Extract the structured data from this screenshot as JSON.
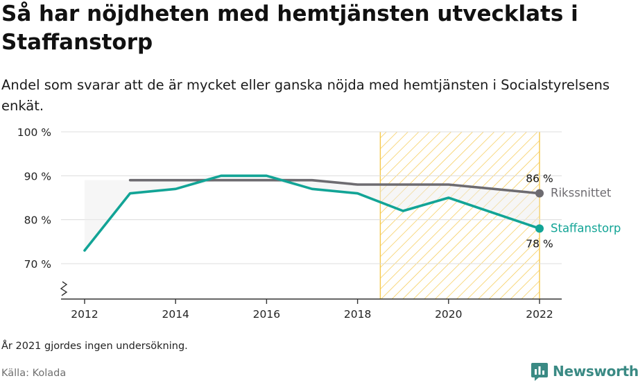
{
  "title": "Så har nöjdheten med hemtjänsten utvecklats i Staffanstorp",
  "subtitle": "Andel som svarar att de är mycket eller ganska nöjda med hemtjänsten i Socialstyrelsens enkät.",
  "note": "År 2021 gjordes ingen undersökning.",
  "source": "Källa: Kolada",
  "brand": "Newsworthy",
  "colors": {
    "staffanstorp": "#12a496",
    "riket": "#6d6b70",
    "highlight": "#f5c84b",
    "grid": "#dcdcdc",
    "axis": "#333333",
    "brand": "#3a8a84"
  },
  "chart_data": {
    "type": "line",
    "x": [
      2012,
      2013,
      2014,
      2015,
      2016,
      2017,
      2018,
      2019,
      2020,
      2022
    ],
    "series": [
      {
        "name": "Rikssnittet",
        "values": [
          null,
          89,
          89,
          89,
          89,
          89,
          88,
          88,
          88,
          86
        ],
        "end_label": "86 %"
      },
      {
        "name": "Staffanstorp",
        "values": [
          73,
          86,
          87,
          90,
          90,
          87,
          86,
          82,
          85,
          78
        ],
        "end_label": "78 %"
      }
    ],
    "xticks": [
      "2012",
      "2014",
      "2016",
      "2018",
      "2020",
      "2022"
    ],
    "xtick_values": [
      2012,
      2014,
      2016,
      2018,
      2020,
      2022
    ],
    "yticks": [
      "70 %",
      "80 %",
      "90 %",
      "100 %"
    ],
    "ytick_values": [
      70,
      80,
      90,
      100
    ],
    "ylim": [
      62,
      100
    ],
    "xlim": [
      2012,
      2022
    ],
    "highlight_range": [
      2018.5,
      2022
    ],
    "axis_break": true,
    "grid": true
  }
}
